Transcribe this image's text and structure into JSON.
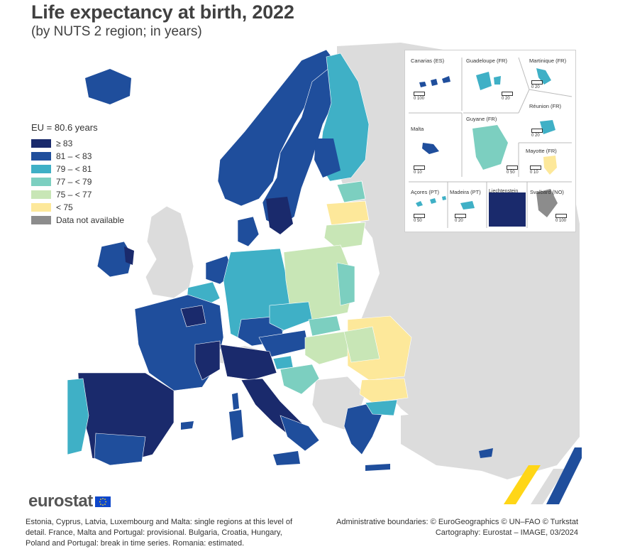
{
  "title": "Life expectancy at birth, 2022",
  "subtitle": "(by NUTS 2 region; in years)",
  "legend": {
    "title": "EU = 80.6 years",
    "items": [
      {
        "label": "≥ 83",
        "color": "#1a2a6c"
      },
      {
        "label": "81 – < 83",
        "color": "#1f4e9c"
      },
      {
        "label": "79 – < 81",
        "color": "#3fb0c6"
      },
      {
        "label": "77 – < 79",
        "color": "#7ccfc0"
      },
      {
        "label": "75 – < 77",
        "color": "#c8e6b6"
      },
      {
        "label": "< 75",
        "color": "#fde89a"
      },
      {
        "label": "Data not available",
        "color": "#8c8c8c"
      }
    ]
  },
  "insets": {
    "canarias": {
      "label": "Canarias (ES)",
      "scale": "0   100"
    },
    "guadeloupe": {
      "label": "Guadeloupe (FR)",
      "scale": "0   20"
    },
    "martinique": {
      "label": "Martinique (FR)",
      "scale": "0   20"
    },
    "reunion": {
      "label": "Réunion (FR)",
      "scale": "0   20"
    },
    "malta": {
      "label": "Malta",
      "scale": "0   10"
    },
    "guyane": {
      "label": "Guyane (FR)",
      "scale": "0  50"
    },
    "mayotte": {
      "label": "Mayotte (FR)",
      "scale": "0  10"
    },
    "acores": {
      "label": "Açores (PT)",
      "scale": "0   50"
    },
    "madeira": {
      "label": "Madeira (PT)",
      "scale": "0   20"
    },
    "liechtenstein": {
      "label": "Liechtenstein"
    },
    "svalbard": {
      "label": "Svalbard (NO)",
      "scale": "0 100"
    }
  },
  "logo": "eurostat",
  "footnote": "Estonia, Cyprus, Latvia, Luxembourg and Malta: single regions at this level of detail. France, Malta and Portugal: provisional. Bulgaria, Croatia, Hungary, Poland and Portugal: break in time series. Romania: estimated.",
  "credits": {
    "line1": "Administrative boundaries: © EuroGeographics © UN–FAO © Turkstat",
    "line2": "Cartography: Eurostat – IMAGE, 03/2024"
  }
}
